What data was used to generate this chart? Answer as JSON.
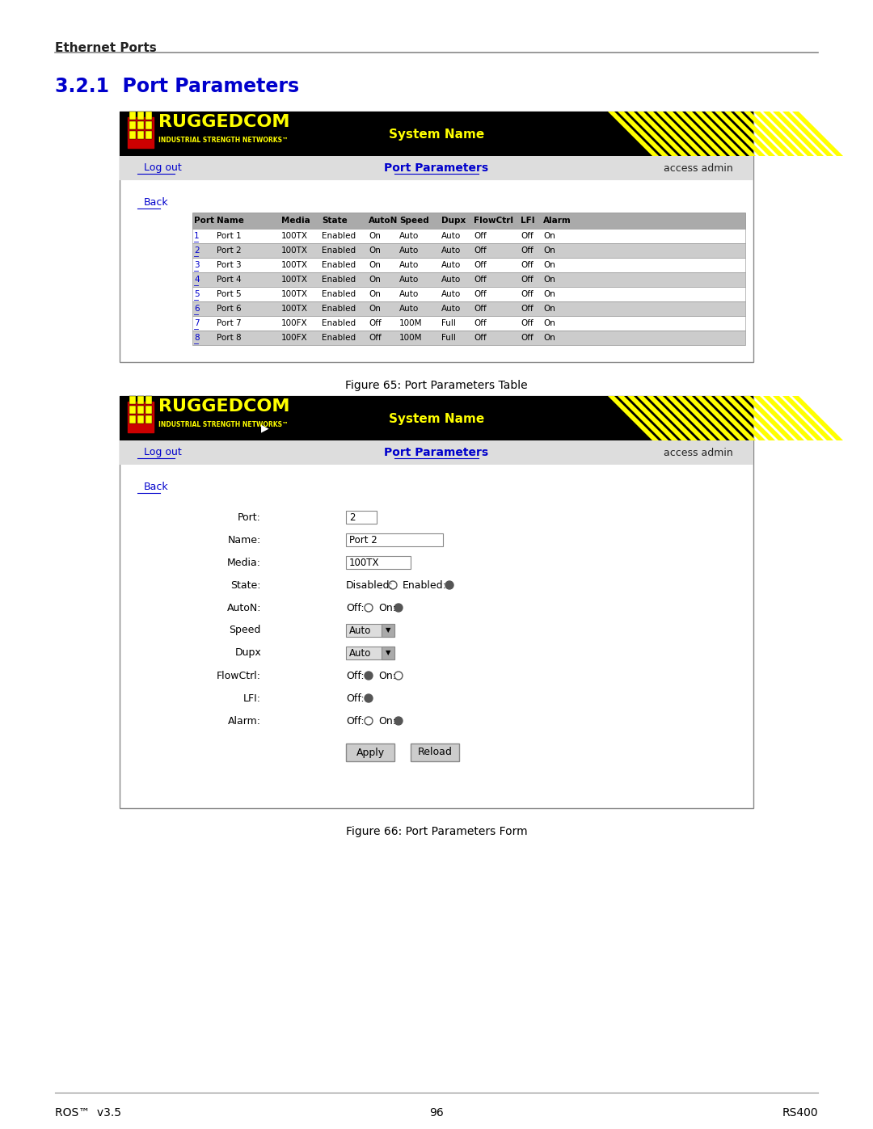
{
  "page_bg": "#ffffff",
  "top_label": "Ethernet Ports",
  "section_title": "3.2.1  Port Parameters",
  "section_title_color": "#0000cc",
  "figure1_caption": "Figure 65: Port Parameters Table",
  "figure2_caption": "Figure 66: Port Parameters Form",
  "footer_left": "ROS™  v3.5",
  "footer_center": "96",
  "footer_right": "RS400",
  "table_header": [
    "Port",
    "Name",
    "Media",
    "State",
    "AutoN",
    "Speed",
    "Dupx",
    "FlowCtrl",
    "LFI",
    "Alarm"
  ],
  "table_rows": [
    [
      "1",
      "Port 1",
      "100TX",
      "Enabled",
      "On",
      "Auto",
      "Auto",
      "Off",
      "Off",
      "On"
    ],
    [
      "2",
      "Port 2",
      "100TX",
      "Enabled",
      "On",
      "Auto",
      "Auto",
      "Off",
      "Off",
      "On"
    ],
    [
      "3",
      "Port 3",
      "100TX",
      "Enabled",
      "On",
      "Auto",
      "Auto",
      "Off",
      "Off",
      "On"
    ],
    [
      "4",
      "Port 4",
      "100TX",
      "Enabled",
      "On",
      "Auto",
      "Auto",
      "Off",
      "Off",
      "On"
    ],
    [
      "5",
      "Port 5",
      "100TX",
      "Enabled",
      "On",
      "Auto",
      "Auto",
      "Off",
      "Off",
      "On"
    ],
    [
      "6",
      "Port 6",
      "100TX",
      "Enabled",
      "On",
      "Auto",
      "Auto",
      "Off",
      "Off",
      "On"
    ],
    [
      "7",
      "Port 7",
      "100FX",
      "Enabled",
      "Off",
      "100M",
      "Full",
      "Off",
      "Off",
      "On"
    ],
    [
      "8",
      "Port 8",
      "100FX",
      "Enabled",
      "Off",
      "100M",
      "Full",
      "Off",
      "Off",
      "On"
    ]
  ],
  "rugged_bg": "#000000",
  "rugged_text_color": "#ffff00",
  "nav_bg": "#ffffff",
  "link_color": "#0000cc",
  "table_header_bg": "#999999",
  "table_row_odd_bg": "#ffffff",
  "table_row_even_bg": "#cccccc",
  "form_fields": [
    {
      "label": "Port:",
      "value": "2",
      "type": "text_short"
    },
    {
      "label": "Name:",
      "value": "Port 2",
      "type": "text_long"
    },
    {
      "label": "Media:",
      "value": "100TX",
      "type": "text_medium"
    },
    {
      "label": "State:",
      "value": "Disabled: ○   Enabled: ◉",
      "type": "radio"
    },
    {
      "label": "AutoN:",
      "value": "Off: ○   On: ◉",
      "type": "radio"
    },
    {
      "label": "Speed",
      "value": "Auto ▾",
      "type": "dropdown"
    },
    {
      "label": "Dupx",
      "value": "Auto ▾",
      "type": "dropdown"
    },
    {
      "label": "FlowCtrl:",
      "value": "Off: ◉   On: ○",
      "type": "radio"
    },
    {
      "label": "LFI:",
      "value": "Off: ◉",
      "type": "radio"
    },
    {
      "label": "Alarm:",
      "value": "Off: ○   On: ◉",
      "type": "radio"
    }
  ]
}
